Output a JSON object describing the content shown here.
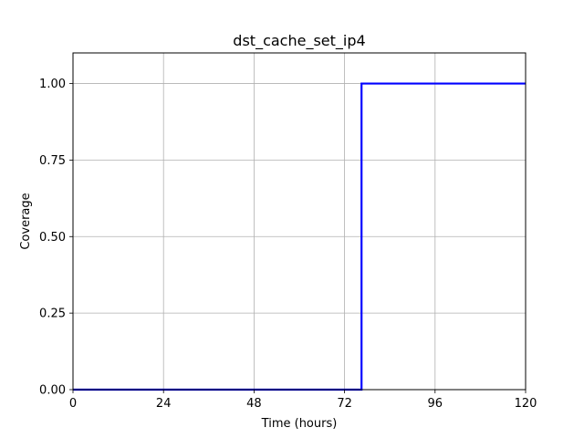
{
  "chart_data": {
    "type": "line",
    "title": "dst_cache_set_ip4",
    "xlabel": "Time (hours)",
    "ylabel": "Coverage",
    "xlim": [
      0,
      120
    ],
    "ylim": [
      0,
      1.1
    ],
    "grid": true,
    "x_ticks": [
      0,
      24,
      48,
      72,
      96,
      120
    ],
    "y_ticks": [
      0.0,
      0.25,
      0.5,
      0.75,
      1.0
    ],
    "x_tick_labels": [
      "0",
      "24",
      "48",
      "72",
      "96",
      "120"
    ],
    "y_tick_labels": [
      "0.00",
      "0.25",
      "0.50",
      "0.75",
      "1.00"
    ],
    "series": [
      {
        "color": "#0000ff",
        "points": [
          [
            0,
            0
          ],
          [
            76.5,
            0
          ],
          [
            76.5,
            1.0
          ],
          [
            120,
            1.0
          ]
        ]
      }
    ]
  }
}
